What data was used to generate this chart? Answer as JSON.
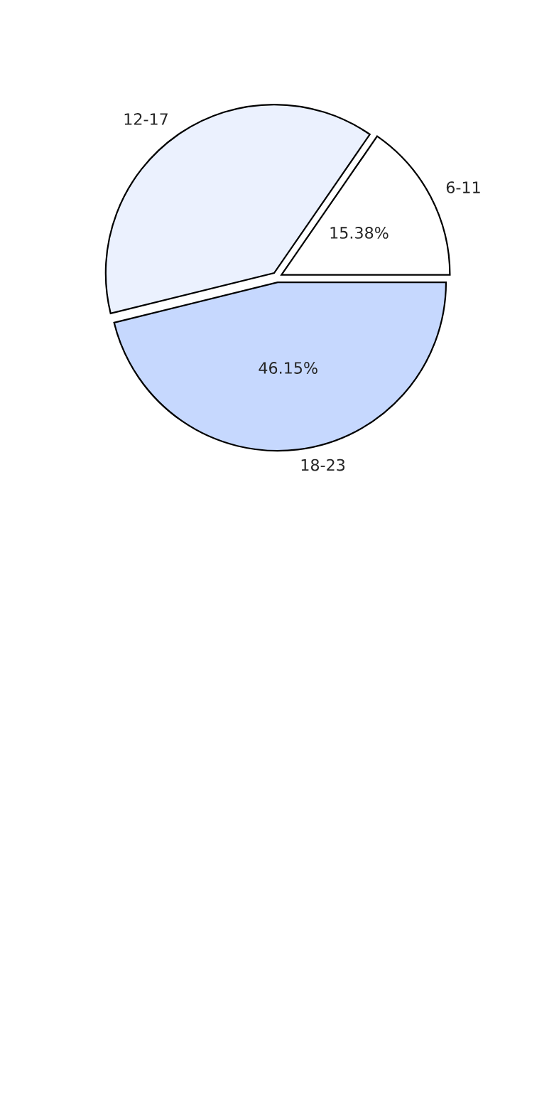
{
  "chart_data": {
    "type": "pie",
    "categories": [
      "6-11",
      "12-17",
      "18-23"
    ],
    "values": [
      15.38,
      38.46,
      46.15
    ],
    "value_labels": [
      "15.38%",
      null,
      "46.15%"
    ],
    "colors": [
      "#ffffff",
      "#ebf1fe",
      "#c6d8fe"
    ],
    "legend": false
  }
}
